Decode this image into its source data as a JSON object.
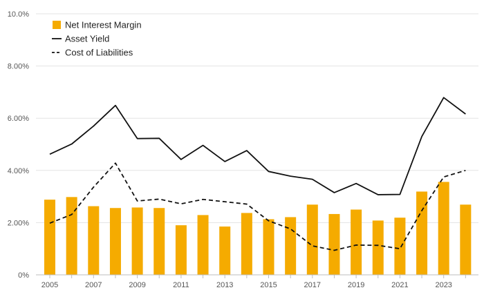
{
  "chart_data": {
    "type": "bar",
    "x": [
      2005,
      2006,
      2007,
      2008,
      2009,
      2010,
      2011,
      2012,
      2013,
      2014,
      2015,
      2016,
      2017,
      2018,
      2019,
      2020,
      2021,
      2022,
      2023,
      2024
    ],
    "x_tick_labels": [
      "2005",
      "2007",
      "2009",
      "2011",
      "2013",
      "2015",
      "2017",
      "2019",
      "2021",
      "2023"
    ],
    "y_tick_labels": [
      "0%",
      "2.00%",
      "4.00%",
      "6.00%",
      "8.00%",
      "10.0%"
    ],
    "ylim": [
      0,
      10
    ],
    "grid": true,
    "legend_position": "top-left",
    "title": "",
    "xlabel": "",
    "ylabel": "",
    "series": [
      {
        "name": "Net Interest Margin",
        "kind": "bar",
        "color": "#F5AB00",
        "values": [
          2.88,
          2.98,
          2.63,
          2.56,
          2.58,
          2.56,
          1.9,
          2.29,
          1.85,
          2.37,
          2.13,
          2.21,
          2.69,
          2.33,
          2.5,
          2.08,
          2.19,
          3.19,
          3.56,
          2.69
        ]
      },
      {
        "name": "Asset Yield",
        "kind": "line",
        "style": "solid",
        "color": "#111111",
        "values": [
          4.62,
          5.01,
          5.7,
          6.49,
          5.22,
          5.23,
          4.42,
          4.96,
          4.34,
          4.76,
          3.96,
          3.78,
          3.66,
          3.15,
          3.5,
          3.07,
          3.08,
          5.3,
          6.79,
          6.16
        ]
      },
      {
        "name": "Cost of Liabilities",
        "kind": "line",
        "style": "dashed",
        "color": "#111111",
        "values": [
          1.98,
          2.31,
          3.36,
          4.28,
          2.83,
          2.9,
          2.72,
          2.89,
          2.8,
          2.71,
          2.07,
          1.76,
          1.11,
          0.94,
          1.14,
          1.13,
          1.0,
          2.46,
          3.75,
          4.0
        ]
      }
    ]
  }
}
